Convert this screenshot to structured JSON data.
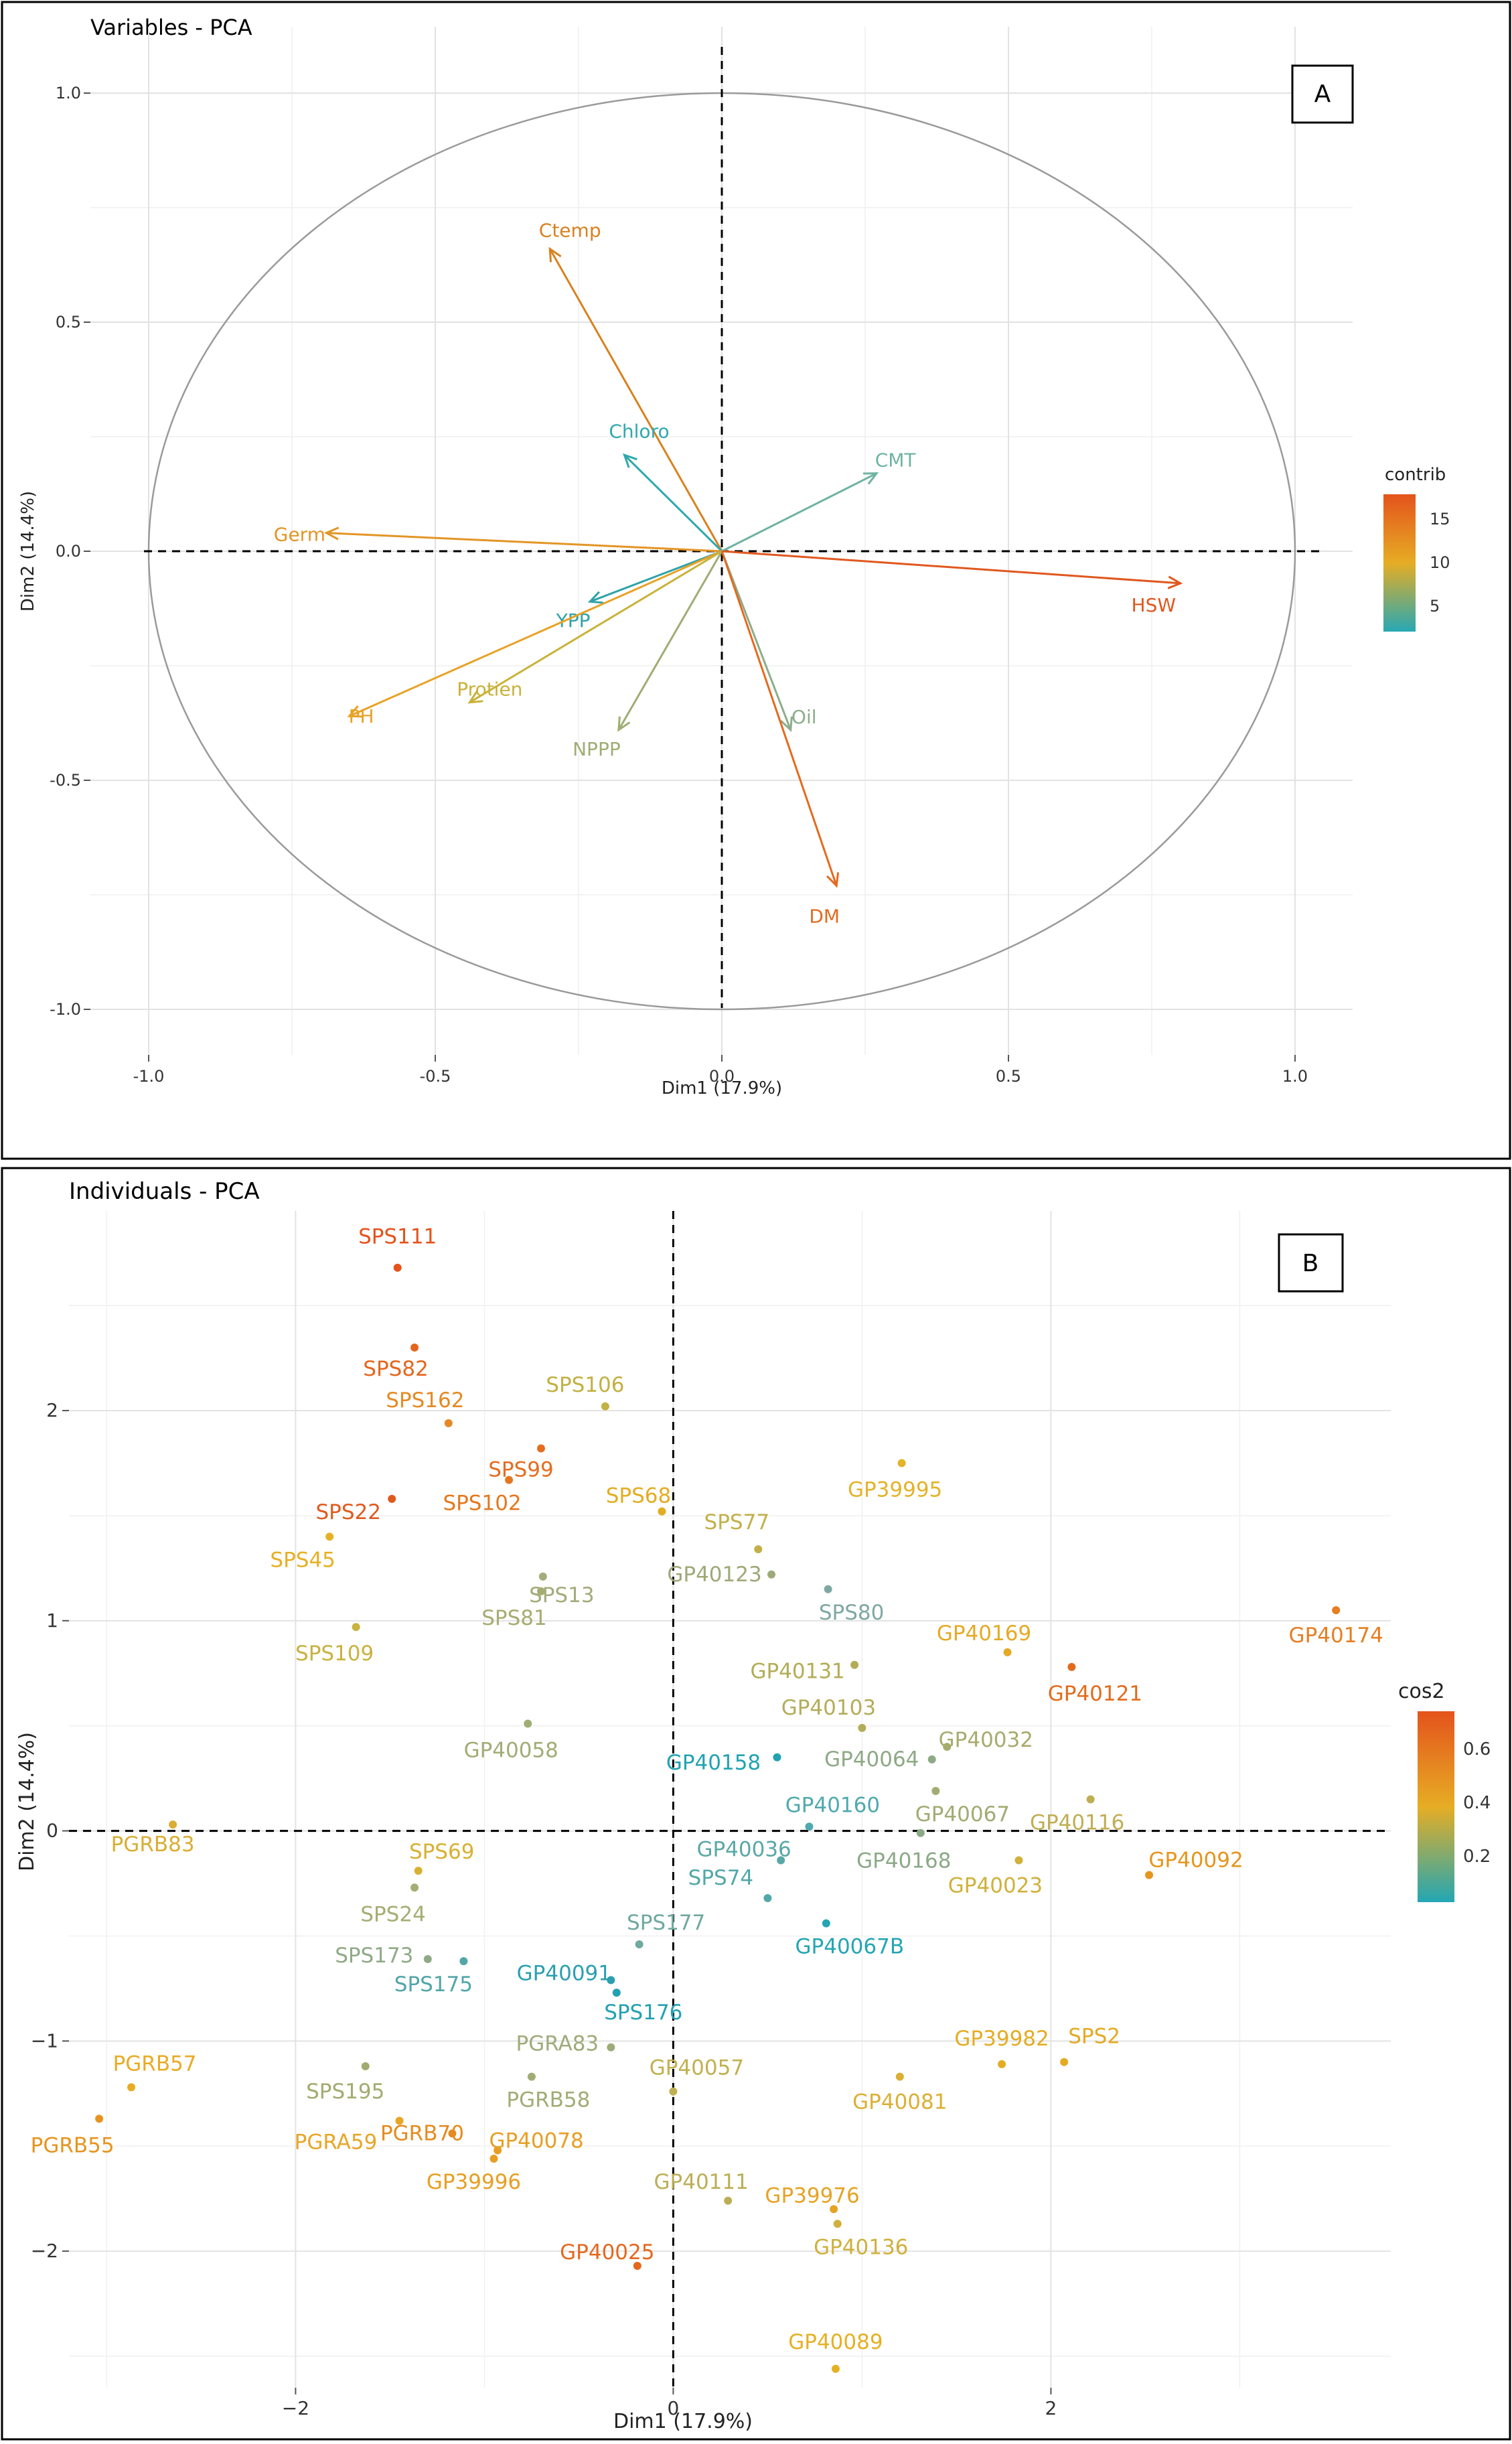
{
  "chart_data": [
    {
      "panel": "A",
      "type": "pca-variables",
      "title": "Variables - PCA",
      "xlabel": "Dim1 (17.9%)",
      "ylabel": "Dim2 (14.4%)",
      "xlim": [
        -1.0,
        1.0
      ],
      "ylim": [
        -1.0,
        1.0
      ],
      "xticks": [
        "-1.0",
        "-0.5",
        "0.0",
        "0.5",
        "1.0"
      ],
      "yticks": [
        "1.0",
        "0.5",
        "0.0",
        "-0.5",
        "-1.0"
      ],
      "legend": {
        "title": "contrib",
        "ticks": [
          "15",
          "10",
          "5"
        ]
      },
      "vectors": [
        {
          "name": "Ctemp",
          "x": -0.3,
          "y": 0.66,
          "color": "#d9811f"
        },
        {
          "name": "Chloro",
          "x": -0.17,
          "y": 0.21,
          "color": "#2ea9ad"
        },
        {
          "name": "CMT",
          "x": 0.27,
          "y": 0.17,
          "color": "#6fb3a2"
        },
        {
          "name": "Germ",
          "x": -0.69,
          "y": 0.04,
          "color": "#e39526"
        },
        {
          "name": "HSW",
          "x": 0.8,
          "y": -0.07,
          "color": "#e0581f"
        },
        {
          "name": "YPP",
          "x": -0.23,
          "y": -0.11,
          "color": "#2ea2a8"
        },
        {
          "name": "PH",
          "x": -0.65,
          "y": -0.36,
          "color": "#e8a227"
        },
        {
          "name": "Protien",
          "x": -0.44,
          "y": -0.33,
          "color": "#c9b239"
        },
        {
          "name": "NPPP",
          "x": -0.18,
          "y": -0.39,
          "color": "#9fad74"
        },
        {
          "name": "Oil",
          "x": 0.12,
          "y": -0.39,
          "color": "#8cad8a"
        },
        {
          "name": "DM",
          "x": 0.2,
          "y": -0.73,
          "color": "#e46a1f"
        }
      ]
    },
    {
      "panel": "B",
      "type": "scatter",
      "title": "Individuals - PCA",
      "xlabel": "Dim1 (17.9%)",
      "ylabel": "Dim2 (14.4%)",
      "xlim": [
        -3.2,
        3.8
      ],
      "ylim": [
        -2.65,
        2.95
      ],
      "xticks": [
        -2,
        0,
        2
      ],
      "yticks": [
        2,
        1,
        0,
        -1,
        -2
      ],
      "legend": {
        "title": "cos2",
        "ticks": [
          "0.6",
          "0.4",
          "0.2"
        ]
      },
      "points": [
        {
          "name": "SPS111",
          "x": -1.46,
          "y": 2.68,
          "color": "#e4531c"
        },
        {
          "name": "SPS82",
          "x": -1.37,
          "y": 2.3,
          "color": "#e4661e"
        },
        {
          "name": "SPS162",
          "x": -1.19,
          "y": 1.94,
          "color": "#e48a24"
        },
        {
          "name": "SPS106",
          "x": -0.36,
          "y": 2.02,
          "color": "#c2b143"
        },
        {
          "name": "SPS99",
          "x": -0.7,
          "y": 1.82,
          "color": "#e46d20"
        },
        {
          "name": "SPS102",
          "x": -0.87,
          "y": 1.67,
          "color": "#e4781f"
        },
        {
          "name": "SPS68",
          "x": -0.06,
          "y": 1.52,
          "color": "#e3ad22"
        },
        {
          "name": "SPS22",
          "x": -1.49,
          "y": 1.58,
          "color": "#e05a1e"
        },
        {
          "name": "SPS45",
          "x": -1.82,
          "y": 1.4,
          "color": "#e7b024"
        },
        {
          "name": "SPS77",
          "x": 0.45,
          "y": 1.34,
          "color": "#c3b04a"
        },
        {
          "name": "SPS13",
          "x": -0.69,
          "y": 1.21,
          "color": "#a2ac7a"
        },
        {
          "name": "GP40123",
          "x": 0.52,
          "y": 1.22,
          "color": "#9ea978"
        },
        {
          "name": "SPS81",
          "x": -0.7,
          "y": 1.14,
          "color": "#a7ad72"
        },
        {
          "name": "SPS80",
          "x": 0.82,
          "y": 1.15,
          "color": "#7fa8a4"
        },
        {
          "name": "SPS109",
          "x": -1.68,
          "y": 0.97,
          "color": "#c9b23f"
        },
        {
          "name": "GP39995",
          "x": 1.21,
          "y": 1.75,
          "color": "#e3b32a"
        },
        {
          "name": "GP40169",
          "x": 1.77,
          "y": 0.85,
          "color": "#e5aa24"
        },
        {
          "name": "GP40174",
          "x": 3.51,
          "y": 1.05,
          "color": "#e67e22"
        },
        {
          "name": "GP40121",
          "x": 2.11,
          "y": 0.78,
          "color": "#e36b1c"
        },
        {
          "name": "GP40131",
          "x": 0.96,
          "y": 0.79,
          "color": "#b2ad55"
        },
        {
          "name": "GP40103",
          "x": 1.0,
          "y": 0.49,
          "color": "#b3ad5a"
        },
        {
          "name": "GP40032",
          "x": 1.45,
          "y": 0.4,
          "color": "#a8ab6d"
        },
        {
          "name": "GP40064",
          "x": 1.37,
          "y": 0.34,
          "color": "#8ea986"
        },
        {
          "name": "GP40058",
          "x": -0.77,
          "y": 0.51,
          "color": "#a0ad75"
        },
        {
          "name": "GP40158",
          "x": 0.55,
          "y": 0.35,
          "color": "#21a3b4"
        },
        {
          "name": "GP40067",
          "x": 1.39,
          "y": 0.19,
          "color": "#a2ab73"
        },
        {
          "name": "GP40116",
          "x": 2.21,
          "y": 0.15,
          "color": "#c0ae52"
        },
        {
          "name": "GP40160",
          "x": 0.72,
          "y": 0.02,
          "color": "#4fa9ae"
        },
        {
          "name": "GP40168",
          "x": 1.31,
          "y": -0.01,
          "color": "#8ca987"
        },
        {
          "name": "PGRB83",
          "x": -2.65,
          "y": 0.03,
          "color": "#d9ae33"
        },
        {
          "name": "GP40092",
          "x": 2.52,
          "y": -0.21,
          "color": "#e6951d"
        },
        {
          "name": "GP40036",
          "x": 0.57,
          "y": -0.14,
          "color": "#5aa8a6"
        },
        {
          "name": "GP40023",
          "x": 1.83,
          "y": -0.14,
          "color": "#cfb13c"
        },
        {
          "name": "SPS69",
          "x": -1.35,
          "y": -0.19,
          "color": "#d8b132"
        },
        {
          "name": "SPS24",
          "x": -1.37,
          "y": -0.27,
          "color": "#a5ad73"
        },
        {
          "name": "SPS74",
          "x": 0.5,
          "y": -0.32,
          "color": "#52a8a8"
        },
        {
          "name": "GP40067B",
          "x": 0.81,
          "y": -0.44,
          "color": "#24a5b4"
        },
        {
          "name": "SPS177",
          "x": -0.18,
          "y": -0.54,
          "color": "#6fa9a0"
        },
        {
          "name": "SPS173",
          "x": -1.3,
          "y": -0.61,
          "color": "#8faa87"
        },
        {
          "name": "SPS175",
          "x": -1.11,
          "y": -0.62,
          "color": "#52a6a8"
        },
        {
          "name": "GP40091",
          "x": -0.33,
          "y": -0.71,
          "color": "#2b9fb0"
        },
        {
          "name": "SPS176",
          "x": -0.3,
          "y": -0.77,
          "color": "#23a1b2"
        },
        {
          "name": "PGRA83",
          "x": -0.33,
          "y": -1.03,
          "color": "#9eab7a"
        },
        {
          "name": "SPS195",
          "x": -1.63,
          "y": -1.12,
          "color": "#a2ab6f"
        },
        {
          "name": "PGRB58",
          "x": -0.75,
          "y": -1.17,
          "color": "#a1ac74"
        },
        {
          "name": "GP40057",
          "x": 0.0,
          "y": -1.24,
          "color": "#c1b04f"
        },
        {
          "name": "GP39982",
          "x": 1.74,
          "y": -1.11,
          "color": "#e4ac24"
        },
        {
          "name": "SPS2",
          "x": 2.07,
          "y": -1.1,
          "color": "#e4aa24"
        },
        {
          "name": "GP40081",
          "x": 1.2,
          "y": -1.17,
          "color": "#dcaf33"
        },
        {
          "name": "PGRB57",
          "x": -2.87,
          "y": -1.22,
          "color": "#e8ab24"
        },
        {
          "name": "PGRB55",
          "x": -3.04,
          "y": -1.37,
          "color": "#e6941f"
        },
        {
          "name": "PGRA59",
          "x": -1.45,
          "y": -1.38,
          "color": "#e8a625"
        },
        {
          "name": "PGRB70",
          "x": -1.17,
          "y": -1.44,
          "color": "#e58b20"
        },
        {
          "name": "GP40078",
          "x": -0.93,
          "y": -1.52,
          "color": "#e89e22"
        },
        {
          "name": "GP39996",
          "x": -0.95,
          "y": -1.56,
          "color": "#e89e22"
        },
        {
          "name": "GP40111",
          "x": 0.29,
          "y": -1.76,
          "color": "#bbae55"
        },
        {
          "name": "GP39976",
          "x": 0.85,
          "y": -1.8,
          "color": "#e5a324"
        },
        {
          "name": "GP40136",
          "x": 0.87,
          "y": -1.87,
          "color": "#cfb03d"
        },
        {
          "name": "GP40025",
          "x": -0.19,
          "y": -2.07,
          "color": "#e3681e"
        },
        {
          "name": "GP40089",
          "x": 0.86,
          "y": -2.56,
          "color": "#e6b023"
        }
      ]
    }
  ]
}
